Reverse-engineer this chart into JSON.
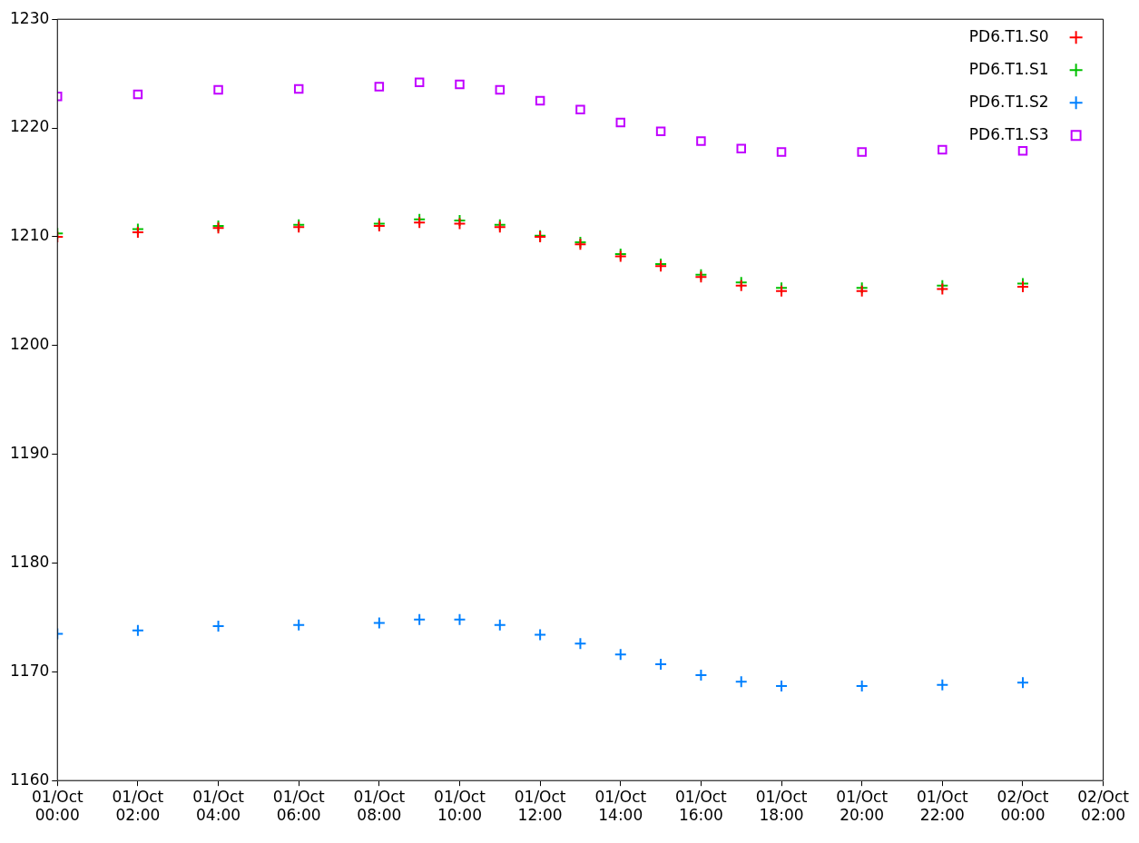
{
  "chart_data": {
    "type": "scatter",
    "x": [
      "--10-01T00:00",
      "--10-01T02:00",
      "--10-01T04:00",
      "--10-01T06:00",
      "--10-01T08:00",
      "--10-01T09:00",
      "--10-01T10:00",
      "--10-01T11:00",
      "--10-01T12:00",
      "--10-01T13:00",
      "--10-01T14:00",
      "--10-01T15:00",
      "--10-01T16:00",
      "--10-01T17:00",
      "--10-01T18:00",
      "--10-01T20:00",
      "--10-01T22:00",
      "--10-02T00:00"
    ],
    "series": [
      {
        "name": "PD6.T1.S0",
        "color": "#ff0000",
        "marker": "cross",
        "values": [
          1210.0,
          1210.4,
          1210.8,
          1210.9,
          1211.0,
          1211.3,
          1211.2,
          1210.9,
          1210.0,
          1209.3,
          1208.2,
          1207.3,
          1206.3,
          1205.5,
          1205.0,
          1205.0,
          1205.2,
          1205.4
        ]
      },
      {
        "name": "PD6.T1.S1",
        "color": "#00c000",
        "marker": "cross",
        "values": [
          1210.3,
          1210.7,
          1211.0,
          1211.1,
          1211.2,
          1211.6,
          1211.5,
          1211.1,
          1210.1,
          1209.5,
          1208.4,
          1207.5,
          1206.5,
          1205.8,
          1205.3,
          1205.3,
          1205.5,
          1205.7
        ]
      },
      {
        "name": "PD6.T1.S2",
        "color": "#0080ff",
        "marker": "cross",
        "values": [
          1173.5,
          1173.8,
          1174.2,
          1174.3,
          1174.5,
          1174.8,
          1174.8,
          1174.3,
          1173.4,
          1172.6,
          1171.6,
          1170.7,
          1169.7,
          1169.1,
          1168.7,
          1168.7,
          1168.8,
          1169.0
        ]
      },
      {
        "name": "PD6.T1.S3",
        "color": "#c000ff",
        "marker": "square",
        "values": [
          1222.9,
          1223.1,
          1223.5,
          1223.6,
          1223.8,
          1224.2,
          1224.0,
          1223.5,
          1222.5,
          1221.7,
          1220.5,
          1219.7,
          1218.8,
          1218.1,
          1217.8,
          1217.8,
          1218.0,
          1217.9
        ]
      }
    ],
    "xlim": [
      "--10-01T00:00",
      "--10-02T02:00"
    ],
    "xticks": [
      {
        "value": "--10-01T00:00",
        "label": "01/Oct 00:00"
      },
      {
        "value": "--10-01T02:00",
        "label": "01/Oct 02:00"
      },
      {
        "value": "--10-01T04:00",
        "label": "01/Oct 04:00"
      },
      {
        "value": "--10-01T06:00",
        "label": "01/Oct 06:00"
      },
      {
        "value": "--10-01T08:00",
        "label": "01/Oct 08:00"
      },
      {
        "value": "--10-01T10:00",
        "label": "01/Oct 10:00"
      },
      {
        "value": "--10-01T12:00",
        "label": "01/Oct 12:00"
      },
      {
        "value": "--10-01T14:00",
        "label": "01/Oct 14:00"
      },
      {
        "value": "--10-01T16:00",
        "label": "01/Oct 16:00"
      },
      {
        "value": "--10-01T18:00",
        "label": "01/Oct 18:00"
      },
      {
        "value": "--10-01T20:00",
        "label": "01/Oct 20:00"
      },
      {
        "value": "--10-01T22:00",
        "label": "01/Oct 22:00"
      },
      {
        "value": "--10-02T00:00",
        "label": "02/Oct 00:00"
      },
      {
        "value": "--10-02T02:00",
        "label": "02/Oct 02:00"
      }
    ],
    "ylim": [
      1160,
      1230
    ],
    "yticks": [
      1160,
      1170,
      1180,
      1190,
      1200,
      1210,
      1220,
      1230
    ],
    "grid": false,
    "legend": "top right"
  }
}
